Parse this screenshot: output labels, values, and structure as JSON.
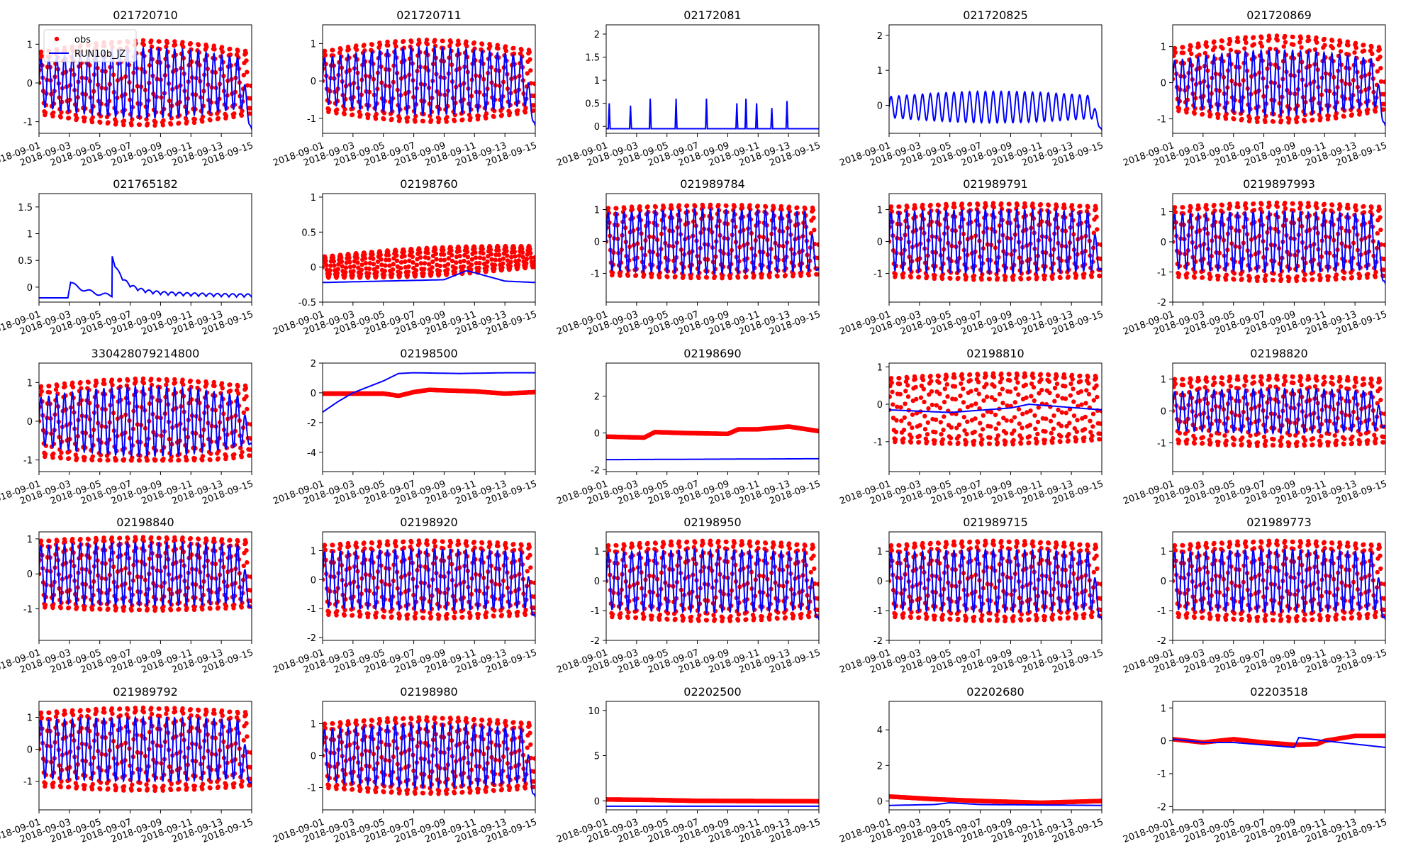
{
  "chart_data": {
    "type": "line",
    "layout": {
      "rows": 5,
      "cols": 5
    },
    "colors": {
      "obs": "#ff0000",
      "model": "#0000ff"
    },
    "legend": {
      "placement": "top-left",
      "show_in_panel": 0,
      "entries": [
        "obs",
        "RUN10b_JZ"
      ]
    },
    "xticks": [
      "2018-09-01",
      "2018-09-03",
      "2018-09-05",
      "2018-09-07",
      "2018-09-09",
      "2018-09-11",
      "2018-09-13",
      "2018-09-15"
    ],
    "xlim": [
      "2018-09-01",
      "2018-09-15"
    ],
    "panels": [
      {
        "title": "021720710",
        "ylim": [
          -1.3,
          1.5
        ],
        "yticks": [
          -1,
          0,
          1
        ],
        "obs": {
          "show": true,
          "base": 0.0,
          "trend": 0.0,
          "amp": 0.8,
          "ampGrow": 0.3,
          "bottom": -1.1
        },
        "model": {
          "type": "tide",
          "base": 0.0,
          "amp": 0.6,
          "ampGrow": 0.3,
          "endDrop": -1.2
        }
      },
      {
        "title": "021720711",
        "ylim": [
          -1.4,
          1.5
        ],
        "yticks": [
          -1,
          0,
          1
        ],
        "obs": {
          "show": true,
          "base": 0.0,
          "trend": 0.0,
          "amp": 0.8,
          "ampGrow": 0.3,
          "bottom": -1.15
        },
        "model": {
          "type": "tide",
          "base": 0.0,
          "amp": 0.6,
          "ampGrow": 0.3,
          "endDrop": -1.2
        }
      },
      {
        "title": "02172081",
        "ylim": [
          -0.15,
          2.2
        ],
        "yticks": [
          0.0,
          0.5,
          1.0,
          1.5,
          2.0
        ],
        "obs": {
          "show": false
        },
        "model": {
          "type": "spikes",
          "base": -0.05,
          "spikes": [
            [
              0.2,
              0.5
            ],
            [
              1.6,
              0.45
            ],
            [
              2.9,
              0.6
            ],
            [
              4.6,
              0.6
            ],
            [
              6.6,
              0.6
            ],
            [
              8.6,
              0.5
            ],
            [
              9.2,
              0.6
            ],
            [
              9.9,
              0.5
            ],
            [
              10.9,
              0.4
            ],
            [
              11.9,
              0.55
            ]
          ]
        }
      },
      {
        "title": "021720825",
        "ylim": [
          -0.8,
          2.3
        ],
        "yticks": [
          0,
          1,
          2
        ],
        "obs": {
          "show": false
        },
        "model": {
          "type": "tide",
          "base": -0.05,
          "amp": 0.3,
          "ampGrow": 0.15,
          "endDrop": -0.7
        }
      },
      {
        "title": "021720869",
        "ylim": [
          -1.4,
          1.6
        ],
        "yticks": [
          -1,
          0,
          1
        ],
        "obs": {
          "show": true,
          "base": 0.1,
          "trend": 0.0,
          "amp": 0.85,
          "ampGrow": 0.35,
          "bottom": -1.2
        },
        "model": {
          "type": "tide",
          "base": 0.0,
          "amp": 0.6,
          "ampGrow": 0.3,
          "endDrop": -1.2
        }
      },
      {
        "title": "021765182",
        "ylim": [
          -0.28,
          1.75
        ],
        "yticks": [
          0.0,
          0.5,
          1.0,
          1.5
        ],
        "obs": {
          "show": false
        },
        "model": {
          "type": "surge",
          "base": -0.2
        }
      },
      {
        "title": "02198760",
        "ylim": [
          -0.5,
          1.05
        ],
        "yticks": [
          -0.5,
          0.0,
          0.5,
          1.0
        ],
        "obs": {
          "show": true,
          "base": 0.0,
          "trend": 0.15,
          "amp": 0.15,
          "ampGrow": 0.05,
          "bottom": -0.3
        },
        "model": {
          "type": "flat",
          "pts": [
            [
              0,
              -0.22
            ],
            [
              4,
              -0.2
            ],
            [
              8,
              -0.18
            ],
            [
              9.5,
              -0.05
            ],
            [
              12,
              -0.2
            ],
            [
              14,
              -0.22
            ]
          ]
        }
      },
      {
        "title": "021989784",
        "ylim": [
          -1.9,
          1.5
        ],
        "yticks": [
          -1,
          0,
          1
        ],
        "obs": {
          "show": true,
          "base": 0.0,
          "trend": 0.0,
          "amp": 1.05,
          "ampGrow": 0.1,
          "bottom": -1.5
        },
        "model": {
          "type": "tide",
          "base": 0.0,
          "amp": 0.9,
          "ampGrow": 0.1,
          "endDrop": -0.9
        }
      },
      {
        "title": "021989791",
        "ylim": [
          -1.9,
          1.5
        ],
        "yticks": [
          -1,
          0,
          1
        ],
        "obs": {
          "show": true,
          "base": 0.0,
          "trend": 0.0,
          "amp": 1.1,
          "ampGrow": 0.1,
          "bottom": -1.55
        },
        "model": {
          "type": "tide",
          "base": 0.0,
          "amp": 0.9,
          "ampGrow": 0.1,
          "endDrop": -0.9
        }
      },
      {
        "title": "0219897993",
        "ylim": [
          -2.0,
          1.6
        ],
        "yticks": [
          -2,
          -1,
          0,
          1
        ],
        "obs": {
          "show": true,
          "base": 0.0,
          "trend": 0.0,
          "amp": 1.15,
          "ampGrow": 0.15,
          "bottom": -1.6
        },
        "model": {
          "type": "tide",
          "base": 0.0,
          "amp": 0.9,
          "ampGrow": 0.1,
          "endDrop": -1.4
        }
      },
      {
        "title": "330428079214800",
        "ylim": [
          -1.3,
          1.5
        ],
        "yticks": [
          -1,
          0,
          1
        ],
        "obs": {
          "show": true,
          "base": 0.0,
          "trend": 0.0,
          "amp": 0.9,
          "ampGrow": 0.2,
          "bottom": -1.0
        },
        "model": {
          "type": "tide",
          "base": 0.0,
          "amp": 0.6,
          "ampGrow": 0.3,
          "endDrop": -0.6
        }
      },
      {
        "title": "02198500",
        "ylim": [
          -5.3,
          2.0
        ],
        "yticks": [
          -4,
          -2,
          0,
          2
        ],
        "obs": {
          "show": true,
          "flat": true,
          "pts": [
            [
              0,
              -0.05
            ],
            [
              4,
              -0.05
            ],
            [
              5,
              -0.2
            ],
            [
              6,
              0.05
            ],
            [
              7,
              0.2
            ],
            [
              10,
              0.1
            ],
            [
              12,
              -0.05
            ],
            [
              14,
              0.05
            ]
          ]
        },
        "model": {
          "type": "flat",
          "pts": [
            [
              0,
              -1.3
            ],
            [
              1,
              -0.6
            ],
            [
              2,
              0.0
            ],
            [
              4,
              0.8
            ],
            [
              5,
              1.3
            ],
            [
              6,
              1.35
            ],
            [
              9,
              1.3
            ],
            [
              12,
              1.35
            ],
            [
              14,
              1.35
            ]
          ]
        }
      },
      {
        "title": "02198690",
        "ylim": [
          -2.1,
          3.8
        ],
        "yticks": [
          -2,
          0,
          2
        ],
        "obs": {
          "show": true,
          "flat": true,
          "pts": [
            [
              0,
              -0.2
            ],
            [
              2.5,
              -0.25
            ],
            [
              3.2,
              0.05
            ],
            [
              5,
              0.0
            ],
            [
              8,
              -0.05
            ],
            [
              8.7,
              0.2
            ],
            [
              10,
              0.2
            ],
            [
              12,
              0.35
            ],
            [
              14,
              0.1
            ]
          ]
        },
        "model": {
          "type": "flat",
          "pts": [
            [
              0,
              -1.45
            ],
            [
              14,
              -1.4
            ]
          ]
        }
      },
      {
        "title": "02198810",
        "ylim": [
          -1.8,
          1.1
        ],
        "yticks": [
          -1,
          0,
          1
        ],
        "obs": {
          "show": true,
          "base": -0.15,
          "trend": 0.05,
          "amp": 0.85,
          "ampGrow": 0.1,
          "bottom": -1.4
        },
        "model": {
          "type": "flat",
          "pts": [
            [
              0,
              -0.15
            ],
            [
              4,
              -0.22
            ],
            [
              8,
              -0.1
            ],
            [
              9.2,
              0.0
            ],
            [
              14,
              -0.15
            ]
          ]
        }
      },
      {
        "title": "02198820",
        "ylim": [
          -1.9,
          1.5
        ],
        "yticks": [
          -1,
          0,
          1
        ],
        "obs": {
          "show": true,
          "base": 0.0,
          "trend": 0.0,
          "amp": 1.0,
          "ampGrow": 0.1,
          "bottom": -1.3
        },
        "model": {
          "type": "tide",
          "base": 0.0,
          "amp": 0.6,
          "ampGrow": 0.1,
          "endDrop": -0.5
        }
      },
      {
        "title": "02198840",
        "ylim": [
          -1.9,
          1.2
        ],
        "yticks": [
          -1,
          0,
          1
        ],
        "obs": {
          "show": true,
          "base": 0.0,
          "trend": 0.0,
          "amp": 0.95,
          "ampGrow": 0.1,
          "bottom": -1.5
        },
        "model": {
          "type": "tide",
          "base": 0.0,
          "amp": 0.8,
          "ampGrow": 0.1,
          "endDrop": -1.0
        }
      },
      {
        "title": "02198920",
        "ylim": [
          -2.1,
          1.65
        ],
        "yticks": [
          -2,
          -1,
          0,
          1
        ],
        "obs": {
          "show": true,
          "base": 0.0,
          "trend": 0.0,
          "amp": 1.2,
          "ampGrow": 0.15,
          "bottom": -1.5
        },
        "model": {
          "type": "tide",
          "base": 0.0,
          "amp": 0.95,
          "ampGrow": 0.1,
          "endDrop": -1.3
        }
      },
      {
        "title": "02198950",
        "ylim": [
          -2.0,
          1.65
        ],
        "yticks": [
          -2,
          -1,
          0,
          1
        ],
        "obs": {
          "show": true,
          "base": 0.0,
          "trend": 0.0,
          "amp": 1.2,
          "ampGrow": 0.15,
          "bottom": -1.5
        },
        "model": {
          "type": "tide",
          "base": 0.0,
          "amp": 0.95,
          "ampGrow": 0.1,
          "endDrop": -1.3
        }
      },
      {
        "title": "021989715",
        "ylim": [
          -2.0,
          1.65
        ],
        "yticks": [
          -2,
          -1,
          0,
          1
        ],
        "obs": {
          "show": true,
          "base": 0.0,
          "trend": 0.0,
          "amp": 1.2,
          "ampGrow": 0.15,
          "bottom": -1.5
        },
        "model": {
          "type": "tide",
          "base": 0.0,
          "amp": 0.95,
          "ampGrow": 0.1,
          "endDrop": -1.3
        }
      },
      {
        "title": "021989773",
        "ylim": [
          -2.0,
          1.65
        ],
        "yticks": [
          -2,
          -1,
          0,
          1
        ],
        "obs": {
          "show": true,
          "base": 0.0,
          "trend": 0.0,
          "amp": 1.2,
          "ampGrow": 0.15,
          "bottom": -1.5
        },
        "model": {
          "type": "tide",
          "base": 0.0,
          "amp": 0.95,
          "ampGrow": 0.1,
          "endDrop": -1.3
        }
      },
      {
        "title": "021989792",
        "ylim": [
          -1.9,
          1.5
        ],
        "yticks": [
          -1,
          0,
          1
        ],
        "obs": {
          "show": true,
          "base": 0.0,
          "trend": 0.0,
          "amp": 1.15,
          "ampGrow": 0.15,
          "bottom": -1.55
        },
        "model": {
          "type": "tide",
          "base": 0.0,
          "amp": 0.9,
          "ampGrow": 0.1,
          "endDrop": -1.1
        }
      },
      {
        "title": "02198980",
        "ylim": [
          -1.7,
          1.7
        ],
        "yticks": [
          -1,
          0,
          1
        ],
        "obs": {
          "show": true,
          "base": 0.0,
          "trend": 0.0,
          "amp": 1.0,
          "ampGrow": 0.2,
          "bottom": -1.3
        },
        "model": {
          "type": "tide",
          "base": 0.0,
          "amp": 0.8,
          "ampGrow": 0.2,
          "endDrop": -1.3
        }
      },
      {
        "title": "02202500",
        "ylim": [
          -1.0,
          11.0
        ],
        "yticks": [
          0,
          5,
          10
        ],
        "obs": {
          "show": true,
          "flat": true,
          "pts": [
            [
              0,
              0.15
            ],
            [
              3,
              0.1
            ],
            [
              6,
              0.0
            ],
            [
              14,
              -0.05
            ]
          ]
        },
        "model": {
          "type": "flat",
          "pts": [
            [
              0,
              -0.6
            ],
            [
              14,
              -0.6
            ]
          ]
        }
      },
      {
        "title": "02202680",
        "ylim": [
          -0.5,
          5.6
        ],
        "yticks": [
          0,
          2,
          4
        ],
        "obs": {
          "show": true,
          "flat": true,
          "pts": [
            [
              0,
              0.25
            ],
            [
              3,
              0.1
            ],
            [
              6,
              0.0
            ],
            [
              10,
              -0.1
            ],
            [
              14,
              0.0
            ]
          ]
        },
        "model": {
          "type": "flat",
          "pts": [
            [
              0,
              -0.25
            ],
            [
              3,
              -0.2
            ],
            [
              4,
              -0.1
            ],
            [
              6,
              -0.2
            ],
            [
              14,
              -0.25
            ]
          ]
        }
      },
      {
        "title": "02203518",
        "ylim": [
          -2.1,
          1.2
        ],
        "yticks": [
          -2,
          -1,
          0,
          1
        ],
        "obs": {
          "show": true,
          "flat": true,
          "pts": [
            [
              0,
              0.05
            ],
            [
              2,
              -0.05
            ],
            [
              4,
              0.05
            ],
            [
              6,
              -0.05
            ],
            [
              8,
              -0.12
            ],
            [
              9.5,
              -0.1
            ],
            [
              10,
              0.0
            ],
            [
              12,
              0.15
            ],
            [
              14,
              0.15
            ]
          ]
        },
        "model": {
          "type": "flat",
          "pts": [
            [
              0,
              0.05
            ],
            [
              2,
              -0.05
            ],
            [
              4,
              -0.05
            ],
            [
              8,
              -0.2
            ],
            [
              8.3,
              0.1
            ],
            [
              10,
              0.0
            ],
            [
              14,
              -0.2
            ]
          ]
        }
      }
    ]
  }
}
